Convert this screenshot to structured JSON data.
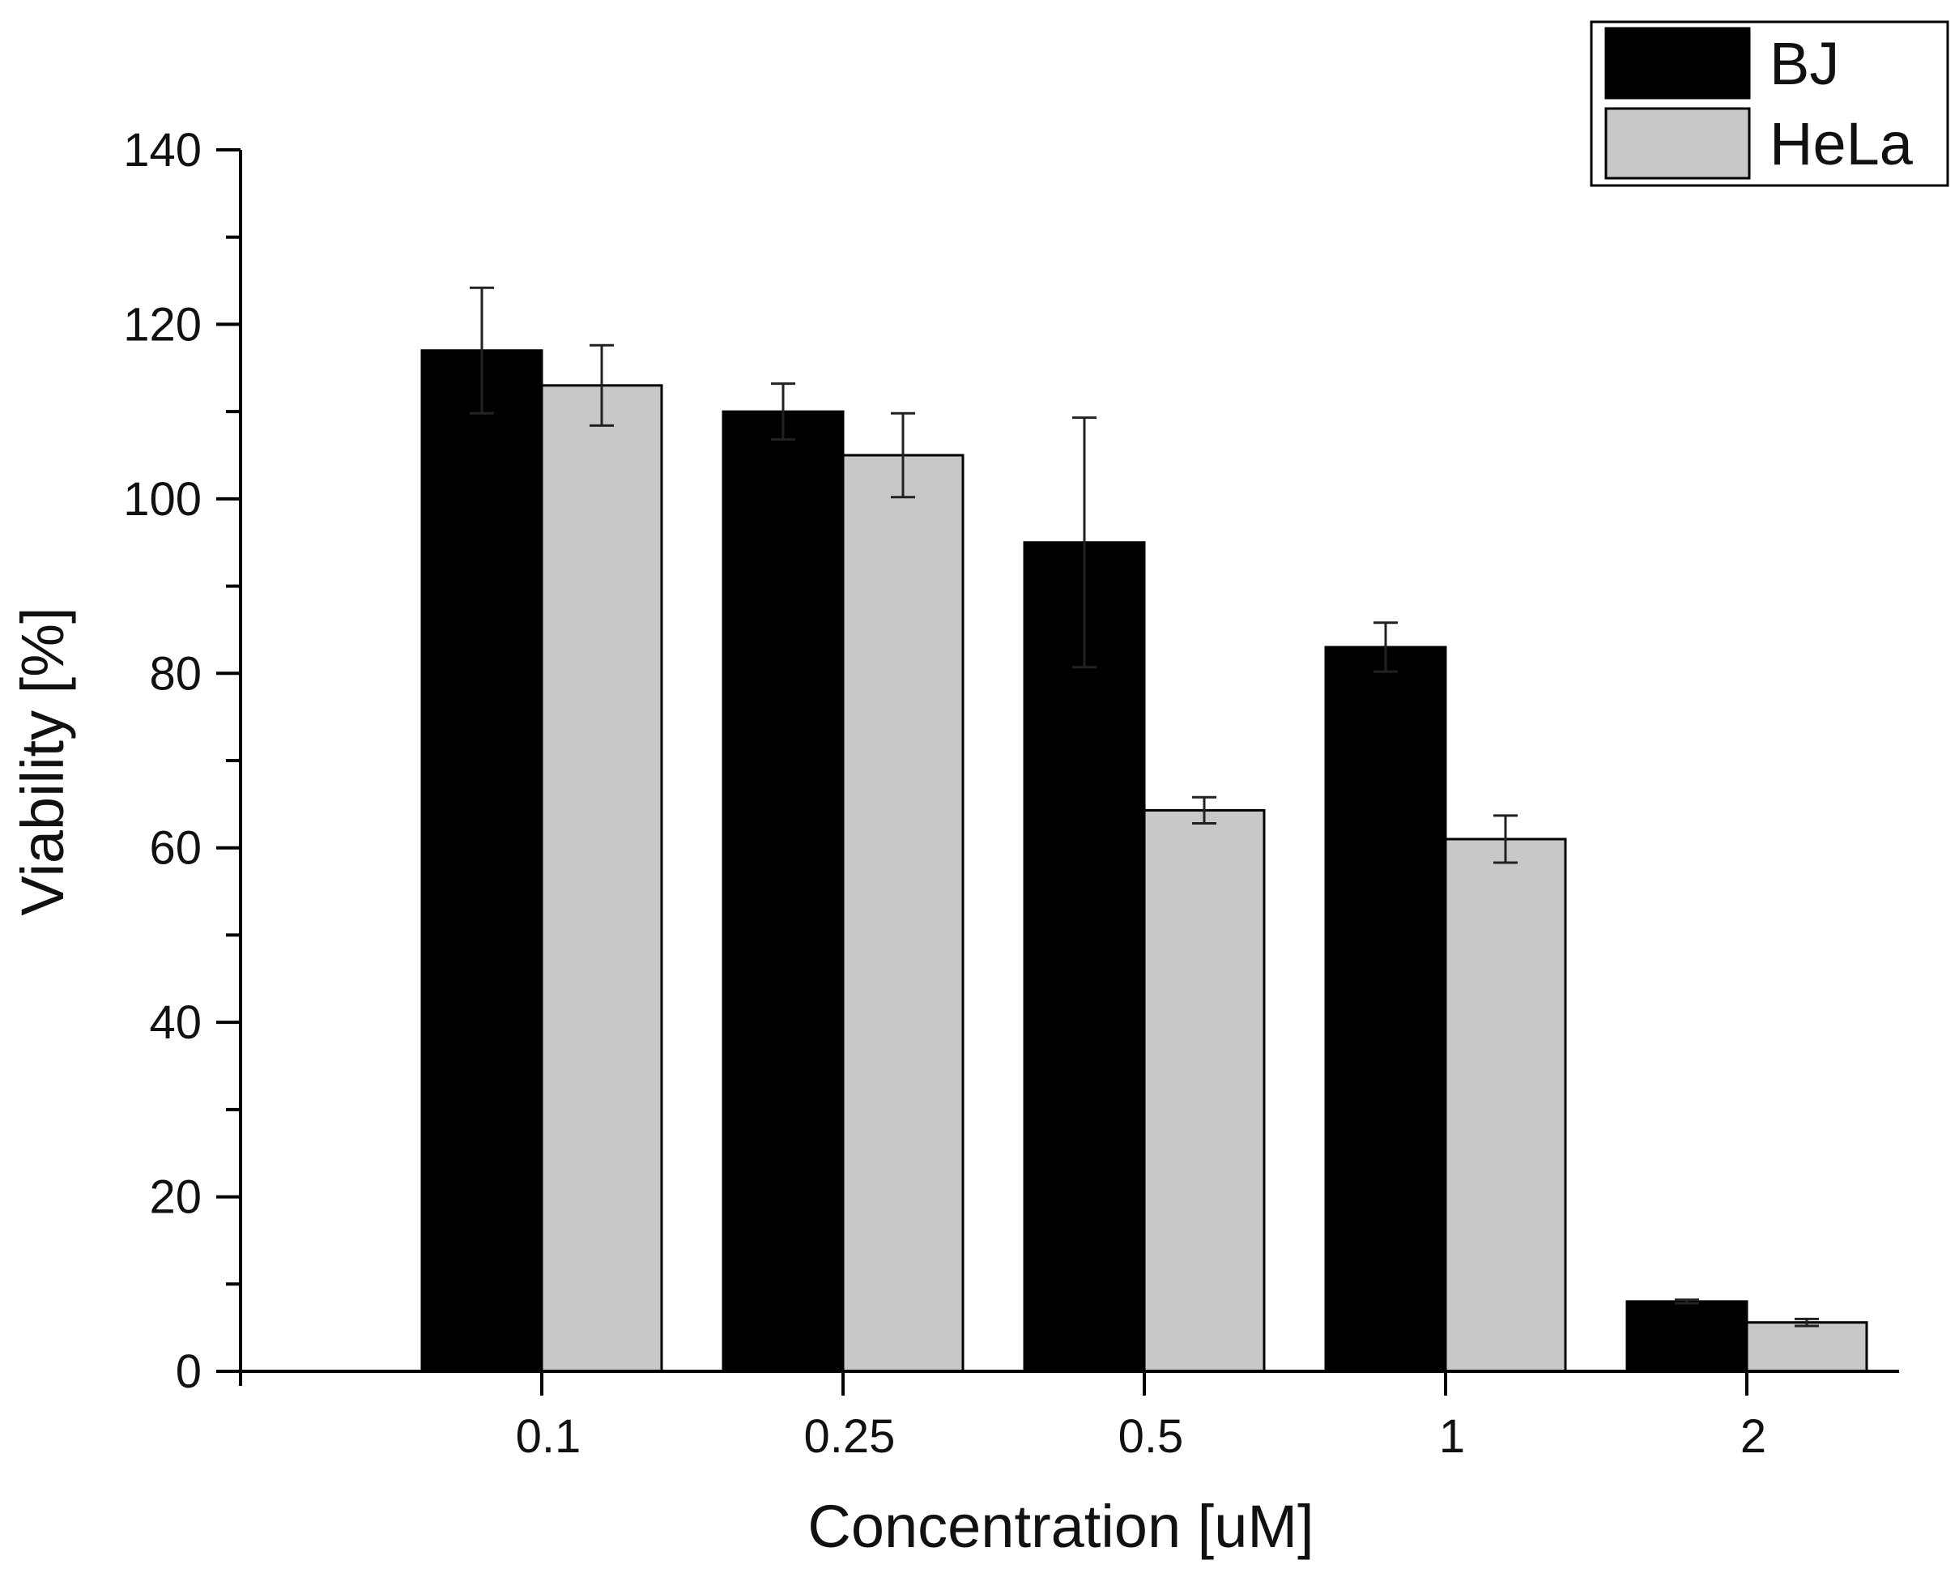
{
  "chart_data": {
    "type": "bar",
    "title": "",
    "xlabel": "Concentration [uM]",
    "ylabel": "Viability [%]",
    "ylim": [
      0,
      140
    ],
    "yticks": [
      0,
      20,
      40,
      60,
      80,
      100,
      120,
      140
    ],
    "categories": [
      "0.1",
      "0.25",
      "0.5",
      "1",
      "2"
    ],
    "legend_position": "top-right",
    "series": [
      {
        "name": "BJ",
        "color": "#000000",
        "values": [
          117,
          110,
          95,
          83,
          8
        ],
        "errors": [
          7.2,
          3.2,
          14.3,
          2.8,
          0.2
        ]
      },
      {
        "name": "HeLa",
        "color": "#c8c8c8",
        "values": [
          113,
          105,
          64.3,
          61,
          5.6
        ],
        "errors": [
          4.6,
          4.8,
          1.5,
          2.7,
          0.4
        ]
      }
    ]
  }
}
